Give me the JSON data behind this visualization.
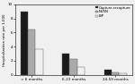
{
  "categories": [
    "< 6 months",
    "6-23 months",
    "24-59 months"
  ],
  "series": {
    "Capture-recapture": [
      9.0,
      3.0,
      0.75
    ],
    "NVSN": [
      6.5,
      2.2,
      0.4
    ],
    "EIP": [
      3.6,
      1.1,
      0.25
    ]
  },
  "colors": {
    "Capture-recapture": "#1a1a1a",
    "NVSN": "#aaaaaa",
    "EIP": "#f0f0f0"
  },
  "ylabel": "Hospitalization rate per 1,000",
  "ylim": [
    0,
    10
  ],
  "yticks": [
    0,
    2,
    4,
    6,
    8,
    10
  ],
  "legend_labels": [
    "Capture-recapture",
    "NVSN",
    "EIP"
  ],
  "bar_width": 0.18,
  "background_color": "#f0f0f0"
}
